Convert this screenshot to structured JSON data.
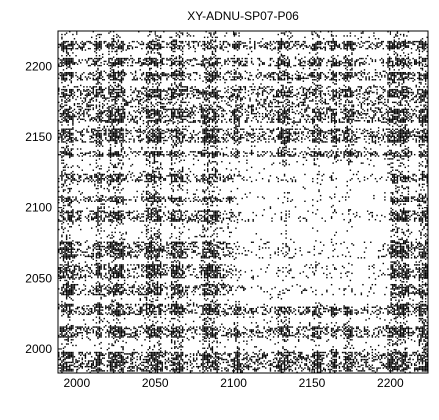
{
  "chart_data": {
    "type": "scatter",
    "title": "XY-ADNU-SP07-P06",
    "xlabel": "",
    "ylabel": "",
    "xlim": [
      1988,
      2224
    ],
    "ylim": [
      1983,
      2225
    ],
    "x_ticks": [
      2000,
      2050,
      2100,
      2150,
      2200
    ],
    "y_ticks": [
      2000,
      2050,
      2100,
      2150,
      2200
    ],
    "x_tick_labels": [
      "2000",
      "2050",
      "2100",
      "2150",
      "2200"
    ],
    "y_tick_labels": [
      "2000",
      "2050",
      "2100",
      "2150",
      "2200"
    ],
    "grid": false,
    "legend": "none",
    "marker": "black dots",
    "point_color": "#000000",
    "dense_x_bands": [
      [
        1990,
        1998
      ],
      [
        2012,
        2016
      ],
      [
        2020,
        2030
      ],
      [
        2044,
        2054
      ],
      [
        2060,
        2068
      ],
      [
        2080,
        2090
      ],
      [
        2100,
        2104
      ],
      [
        2128,
        2136
      ],
      [
        2150,
        2156
      ],
      [
        2162,
        2166
      ],
      [
        2170,
        2176
      ],
      [
        2198,
        2212
      ],
      [
        2218,
        2224
      ]
    ],
    "dense_y_bands": [
      [
        1984,
        1998
      ],
      [
        2008,
        2016
      ],
      [
        2024,
        2032
      ],
      [
        2038,
        2046
      ],
      [
        2050,
        2060
      ],
      [
        2064,
        2076
      ],
      [
        2090,
        2098
      ],
      [
        2104,
        2108
      ],
      [
        2118,
        2124
      ],
      [
        2136,
        2140
      ],
      [
        2146,
        2156
      ],
      [
        2160,
        2170
      ],
      [
        2178,
        2184
      ],
      [
        2190,
        2196
      ],
      [
        2200,
        2206
      ],
      [
        2212,
        2218
      ]
    ],
    "sparse_region": {
      "x": [
        2100,
        2200
      ],
      "y": [
        2030,
        2130
      ]
    }
  }
}
